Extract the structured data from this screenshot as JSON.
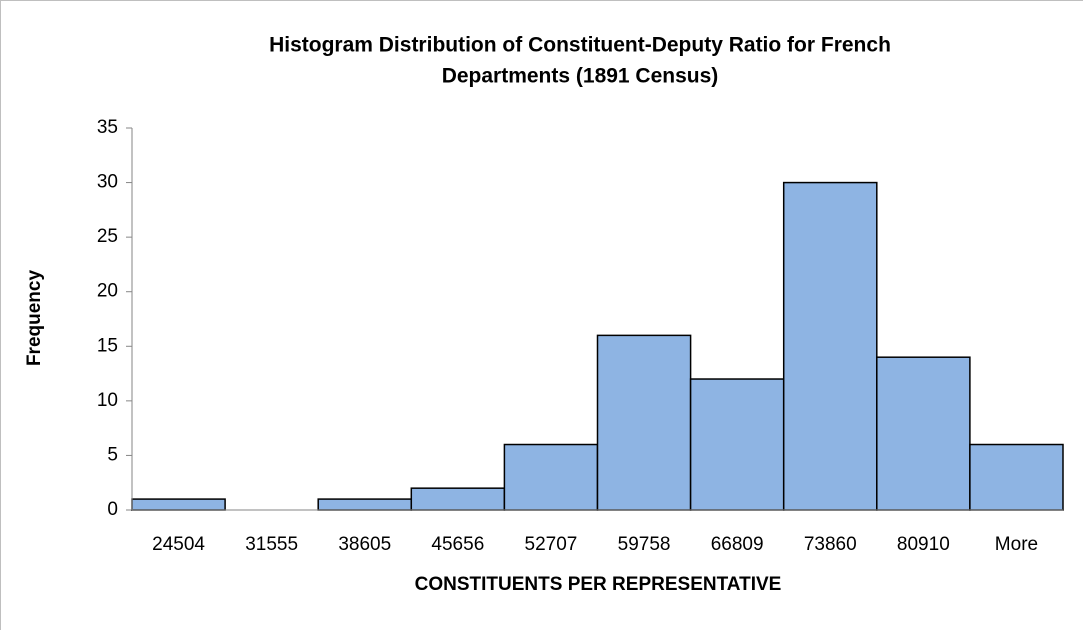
{
  "chart_data": {
    "type": "bar",
    "title": [
      "Histogram Distribution of Constituent-Deputy Ratio for French",
      "Departments (1891 Census)"
    ],
    "x_label": "CONSTITUENTS PER REPRESENTATIVE",
    "y_label": "Frequency",
    "categories": [
      "24504",
      "31555",
      "38605",
      "45656",
      "52707",
      "59758",
      "66809",
      "73860",
      "80910",
      "More"
    ],
    "values": [
      1,
      0,
      1,
      2,
      6,
      16,
      12,
      30,
      14,
      6
    ],
    "color": "#8eb4e3",
    "ylim": [
      0,
      35
    ],
    "yticks": [
      0,
      5,
      10,
      15,
      20,
      25,
      30,
      35
    ],
    "grid": false
  }
}
